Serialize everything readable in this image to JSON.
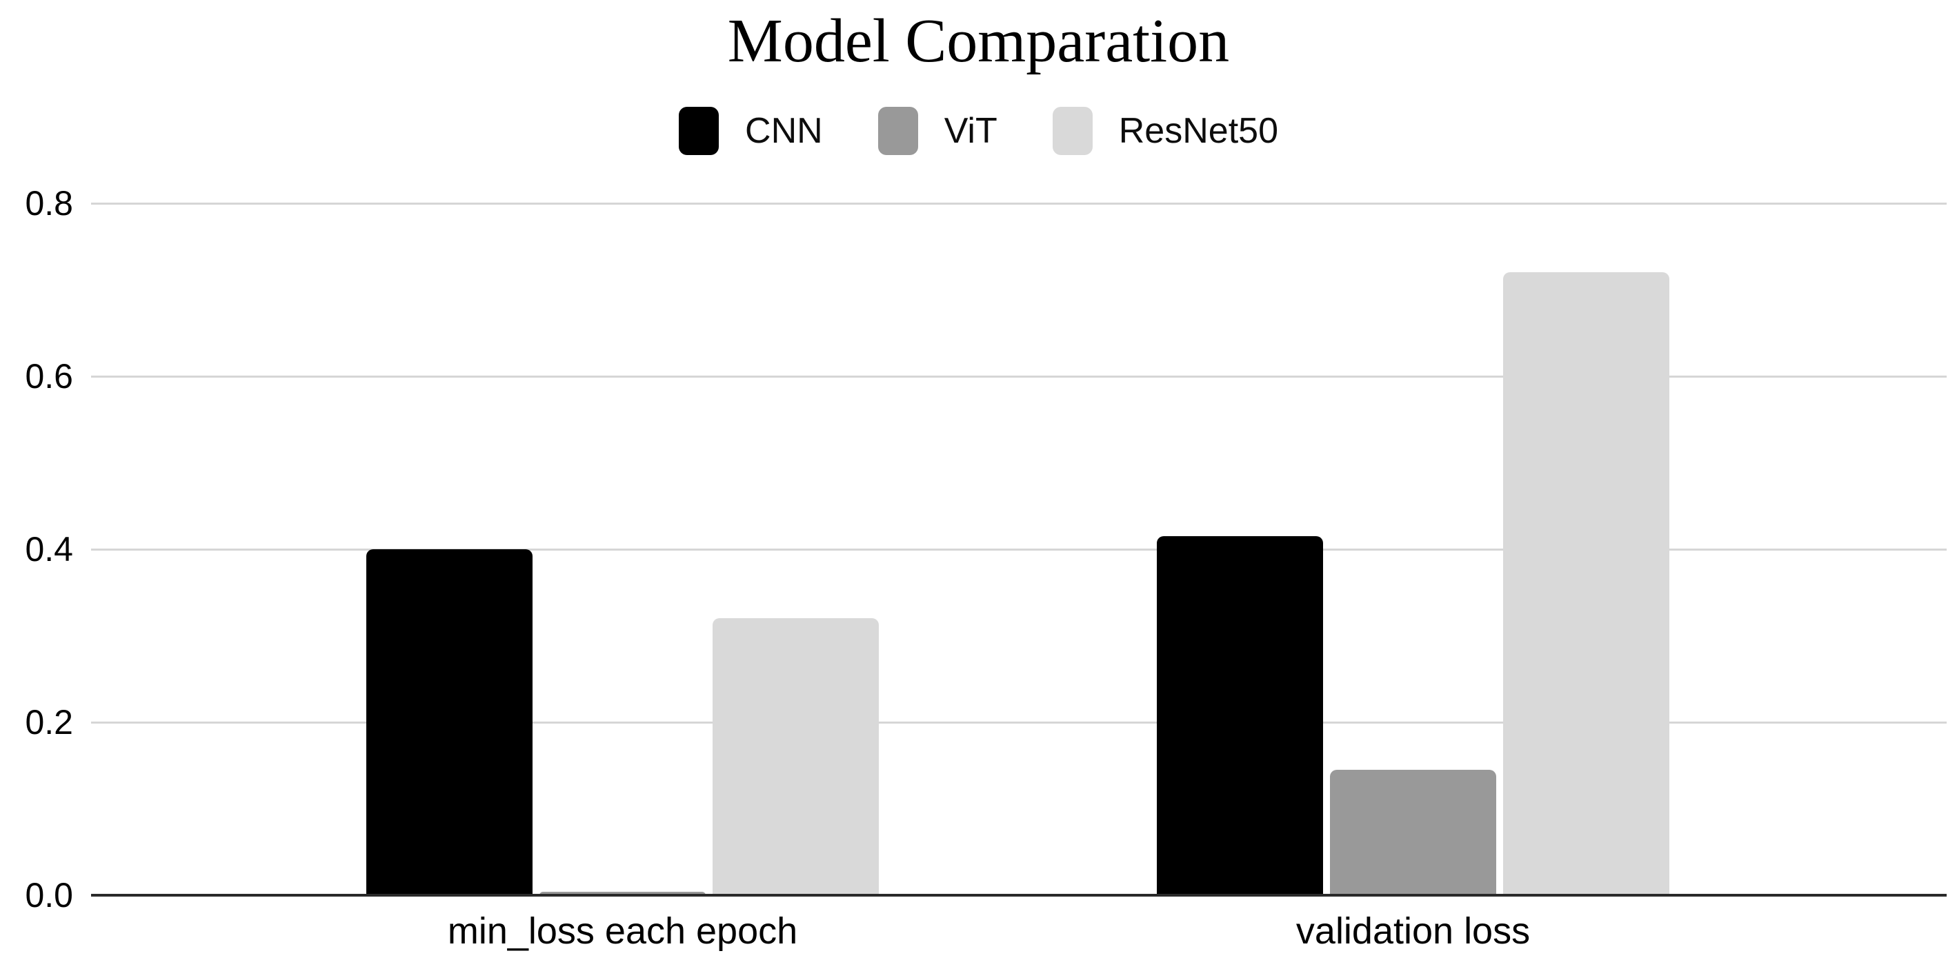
{
  "title": "Model Comparation",
  "chart_data": {
    "type": "bar",
    "title": "Model Comparation",
    "categories": [
      "min_loss each epoch",
      "validation loss"
    ],
    "series": [
      {
        "name": "CNN",
        "color": "#000000",
        "values": [
          0.4,
          0.415
        ]
      },
      {
        "name": "ViT",
        "color": "#999999",
        "values": [
          0.004,
          0.145
        ]
      },
      {
        "name": "ResNet50",
        "color": "#d9d9d9",
        "values": [
          0.32,
          0.72
        ]
      }
    ],
    "xlabel": "",
    "ylabel": "",
    "ylim": [
      0,
      0.8
    ],
    "yticks": [
      "0.0",
      "0.2",
      "0.4",
      "0.6",
      "0.8"
    ],
    "grid": true,
    "legend_position": "top",
    "background_color": "#ffffff",
    "gridline_color": "#d6d6d6",
    "axis_color": "#2a2a2a",
    "text_color": "#000000"
  }
}
